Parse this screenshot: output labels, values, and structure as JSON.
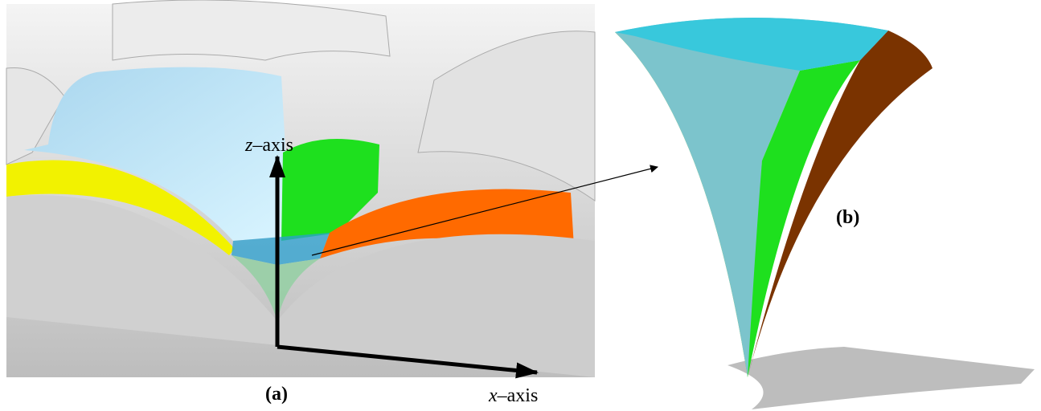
{
  "panel_a": {
    "label": "(a)",
    "z_axis": {
      "var": "z",
      "suffix": "–axis"
    },
    "x_axis": {
      "var": "x",
      "suffix": "–axis"
    }
  },
  "panel_b": {
    "label": "(b)"
  }
}
